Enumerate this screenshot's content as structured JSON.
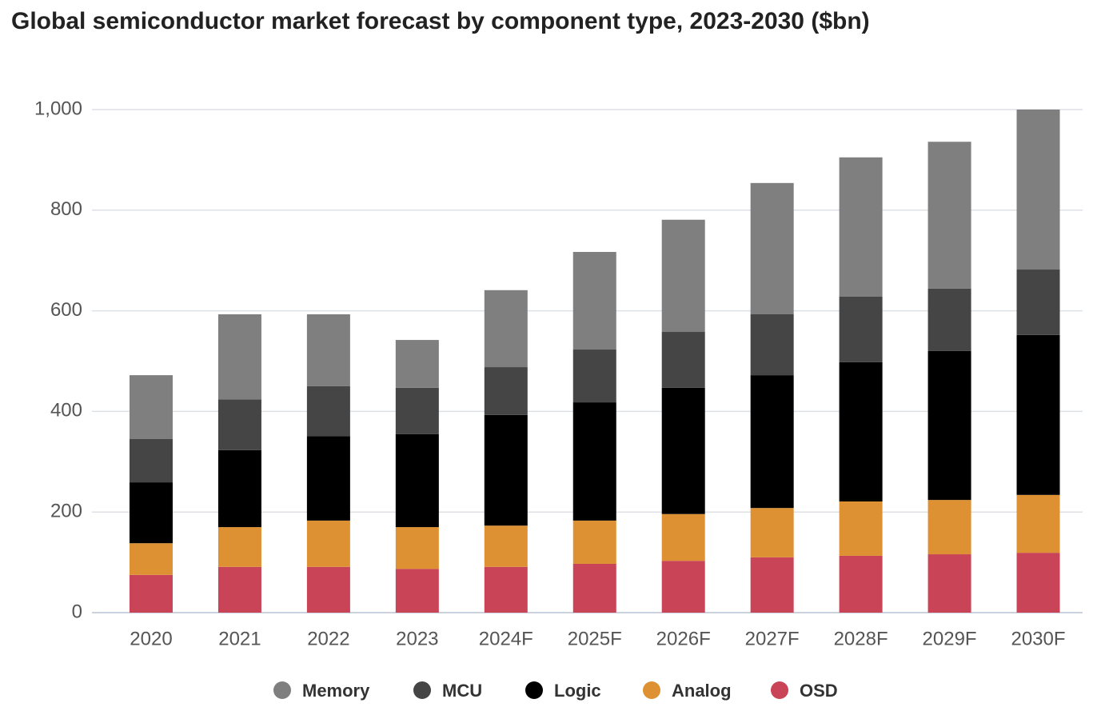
{
  "chart_data": {
    "type": "stacked_bar",
    "title": "Global semiconductor market forecast by component type, 2023-2030 ($bn)",
    "categories": [
      "2020",
      "2021",
      "2022",
      "2023",
      "2024F",
      "2025F",
      "2026F",
      "2027F",
      "2028F",
      "2029F",
      "2030F"
    ],
    "series": [
      {
        "name": "Memory",
        "color": "#7f7f7f",
        "values": [
          127,
          169,
          143,
          95,
          153,
          194,
          223,
          261,
          277,
          292,
          318
        ]
      },
      {
        "name": "MCU",
        "color": "#454545",
        "values": [
          86,
          101,
          99,
          92,
          95,
          105,
          111,
          121,
          130,
          124,
          130
        ]
      },
      {
        "name": "Logic",
        "color": "#000000",
        "values": [
          121,
          153,
          168,
          185,
          220,
          235,
          251,
          264,
          277,
          296,
          318
        ]
      },
      {
        "name": "Analog",
        "color": "#dd9133",
        "values": [
          63,
          79,
          92,
          83,
          82,
          86,
          93,
          98,
          108,
          108,
          115
        ]
      },
      {
        "name": "OSD",
        "color": "#c94456",
        "values": [
          75,
          91,
          91,
          87,
          91,
          97,
          103,
          110,
          113,
          116,
          119
        ]
      }
    ],
    "ylim": [
      0,
      1000
    ],
    "yticks": [
      0,
      200,
      400,
      600,
      800,
      {
        "value": 1000,
        "label": "1,000"
      }
    ],
    "grid": true
  }
}
